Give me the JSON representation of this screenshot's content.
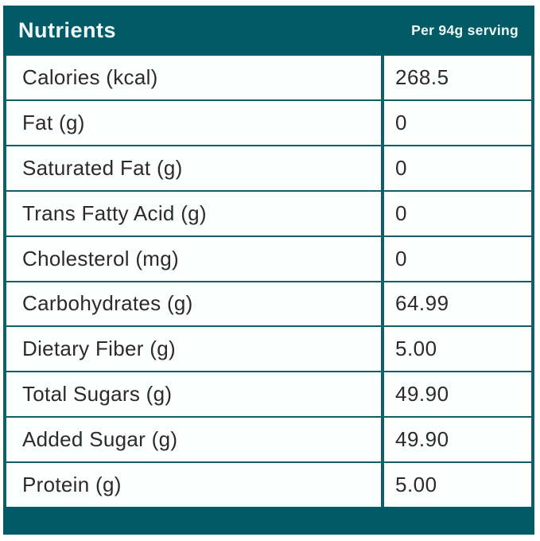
{
  "table": {
    "header": {
      "title": "Nutrients",
      "serving_label": "Per 94g serving"
    },
    "rows": [
      {
        "label": "Calories (kcal)",
        "value": "268.5"
      },
      {
        "label": "Fat (g)",
        "value": "0"
      },
      {
        "label": "Saturated Fat (g)",
        "value": "0"
      },
      {
        "label": "Trans Fatty Acid (g)",
        "value": "0"
      },
      {
        "label": "Cholesterol (mg)",
        "value": "0"
      },
      {
        "label": "Carbohydrates (g)",
        "value": "64.99"
      },
      {
        "label": "Dietary Fiber (g)",
        "value": "5.00"
      },
      {
        "label": "Total Sugars (g)",
        "value": "49.90"
      },
      {
        "label": "Added Sugar (g)",
        "value": "49.90"
      },
      {
        "label": "Protein (g)",
        "value": "5.00"
      }
    ]
  },
  "colors": {
    "teal": "#015a66",
    "border": "#0f5f69",
    "row_bg": "#fdfefe",
    "text": "#2b2b2b",
    "header_text": "#f2fafa"
  },
  "chart_data": {
    "type": "table",
    "title": "Nutrients",
    "columns": [
      "Nutrients",
      "Per 94g serving"
    ],
    "rows": [
      [
        "Calories (kcal)",
        "268.5"
      ],
      [
        "Fat (g)",
        "0"
      ],
      [
        "Saturated Fat (g)",
        "0"
      ],
      [
        "Trans Fatty Acid (g)",
        "0"
      ],
      [
        "Cholesterol (mg)",
        "0"
      ],
      [
        "Carbohydrates (g)",
        "64.99"
      ],
      [
        "Dietary Fiber (g)",
        "5.00"
      ],
      [
        "Total Sugars (g)",
        "49.90"
      ],
      [
        "Added Sugar (g)",
        "49.90"
      ],
      [
        "Protein (g)",
        "5.00"
      ]
    ],
    "layout": {
      "header_background": "#015a66",
      "grid": "teal borders between all rows and between the two columns",
      "footer_bar": true
    }
  }
}
